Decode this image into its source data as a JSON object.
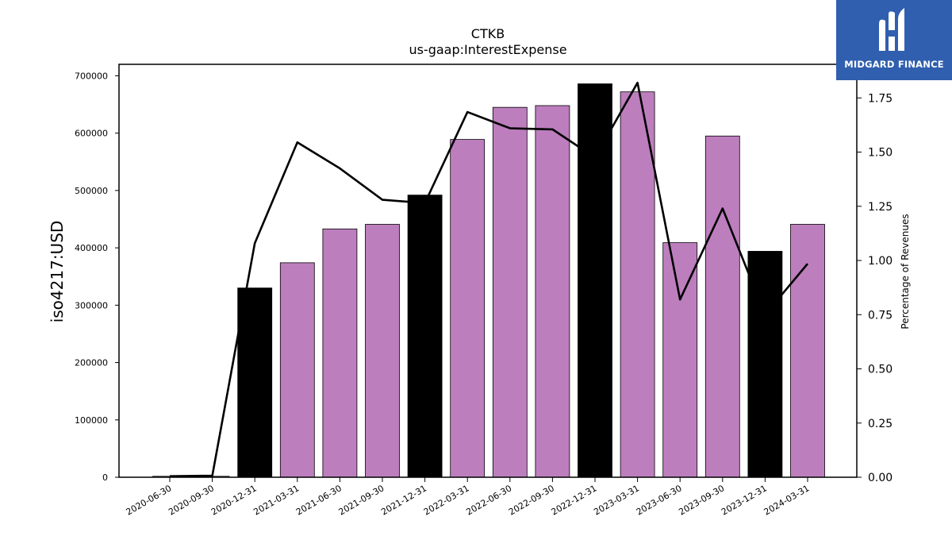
{
  "brand": {
    "name": "MIDGARD FINANCE",
    "bg_color": "#2f5fae"
  },
  "chart_data": {
    "type": "bar",
    "title": "CTKB",
    "subtitle": "us-gaap:InterestExpense",
    "ylabel": "iso4217:USD",
    "y2label": "Percentage of Revenues",
    "categories": [
      "2020-06-30",
      "2020-09-30",
      "2020-12-31",
      "2021-03-31",
      "2021-06-30",
      "2021-09-30",
      "2021-12-31",
      "2022-03-31",
      "2022-06-30",
      "2022-09-30",
      "2022-12-31",
      "2023-03-31",
      "2023-06-30",
      "2023-09-30",
      "2023-12-31",
      "2024-03-31"
    ],
    "series": [
      {
        "values": [
          0,
          0,
          330000,
          374000,
          433000,
          441000,
          492000,
          589000,
          645000,
          648000,
          686000,
          672000,
          409000,
          595000,
          394000,
          441000
        ],
        "colors": [
          "#bd7ebe",
          "#bd7ebe",
          "#000000",
          "#bd7ebe",
          "#bd7ebe",
          "#bd7ebe",
          "#000000",
          "#bd7ebe",
          "#bd7ebe",
          "#bd7ebe",
          "#000000",
          "#bd7ebe",
          "#bd7ebe",
          "#bd7ebe",
          "#000000",
          "#bd7ebe"
        ]
      },
      {
        "type": "line",
        "axis": "right",
        "color": "#000000",
        "values": [
          0.005,
          0.007,
          1.08,
          1.545,
          1.425,
          1.28,
          1.265,
          1.685,
          1.61,
          1.605,
          1.475,
          1.82,
          0.82,
          1.24,
          0.75,
          0.985
        ]
      }
    ],
    "y_ticks": [
      0,
      100000,
      200000,
      300000,
      400000,
      500000,
      600000,
      700000
    ],
    "y2_ticks": [
      "0.00",
      "0.25",
      "0.50",
      "0.75",
      "1.00",
      "1.25",
      "1.50",
      "1.75"
    ],
    "ylim": [
      0,
      720000
    ],
    "y2lim": [
      0,
      1.905
    ]
  }
}
